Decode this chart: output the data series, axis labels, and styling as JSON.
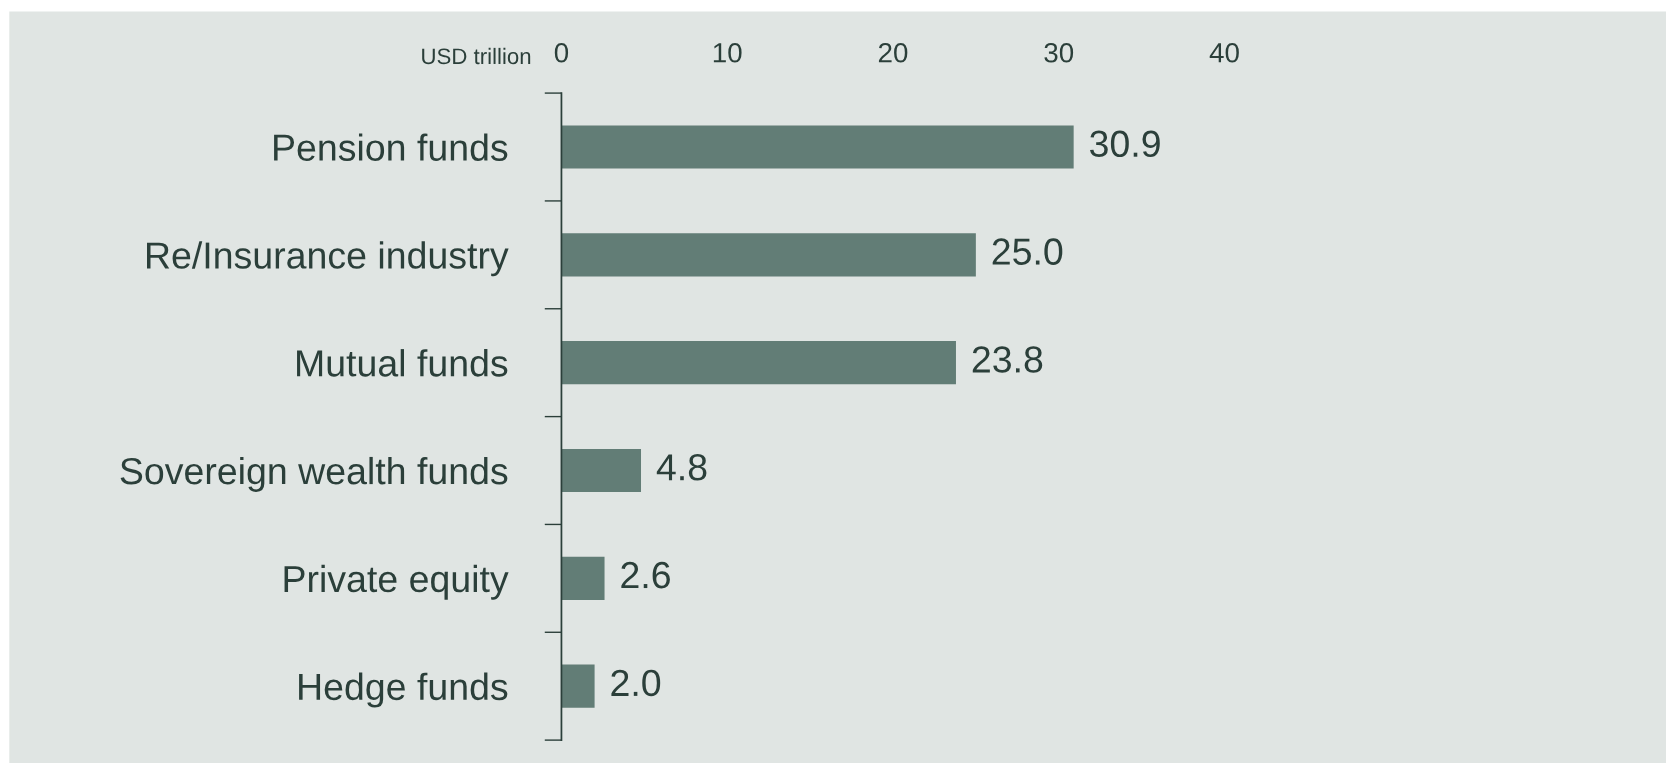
{
  "chart_data": {
    "type": "bar",
    "orientation": "horizontal",
    "xlabel": "USD trillion",
    "categories": [
      "Pension funds",
      "Re/Insurance industry",
      "Mutual funds",
      "Sovereign wealth funds",
      "Private equity",
      "Hedge funds"
    ],
    "values": [
      30.9,
      25.0,
      23.8,
      4.8,
      2.6,
      2.0
    ],
    "value_labels": [
      "30.9",
      "25.0",
      "23.8",
      "4.8",
      "2.6",
      "2.0"
    ],
    "color": "#627d76",
    "xlim": [
      0,
      40
    ],
    "xticks": [
      0,
      10,
      20,
      30,
      40
    ],
    "grid": false,
    "legend": false
  }
}
